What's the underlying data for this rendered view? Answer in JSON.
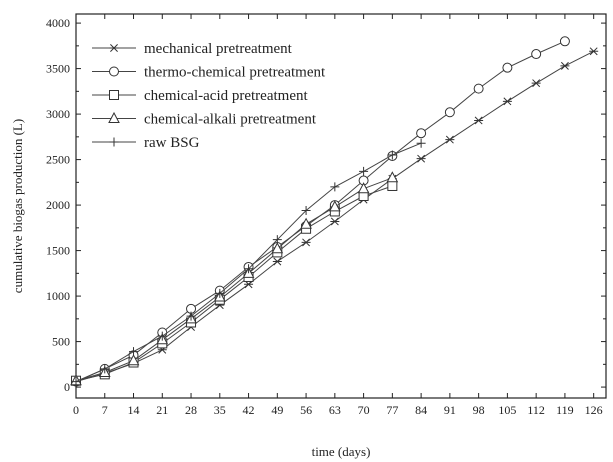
{
  "chart_data": {
    "type": "line",
    "xlabel": "time (days)",
    "ylabel": "cumulative biogas production (L)",
    "xlim": [
      0,
      129
    ],
    "ylim": [
      -120,
      4100
    ],
    "xticks": [
      0,
      7,
      14,
      21,
      28,
      35,
      42,
      49,
      56,
      63,
      70,
      77,
      84,
      91,
      98,
      105,
      112,
      119,
      126
    ],
    "yticks": [
      0,
      500,
      1000,
      1500,
      2000,
      2500,
      3000,
      3500,
      4000
    ],
    "legend_position": "top-left",
    "series": [
      {
        "name": "mechanical pretreatment",
        "marker": "asterisk",
        "x": [
          0,
          7,
          14,
          21,
          28,
          35,
          42,
          49,
          56,
          63,
          70,
          77,
          84,
          91,
          98,
          105,
          112,
          119,
          126
        ],
        "y": [
          60,
          150,
          260,
          410,
          660,
          900,
          1130,
          1380,
          1590,
          1820,
          2060,
          2290,
          2510,
          2720,
          2930,
          3140,
          3340,
          3530,
          3690
        ]
      },
      {
        "name": "thermo-chemical pretreatment",
        "marker": "circle",
        "x": [
          0,
          7,
          14,
          21,
          28,
          35,
          42,
          49,
          56,
          63,
          70,
          77,
          84,
          91,
          98,
          105,
          112,
          119
        ],
        "y": [
          60,
          200,
          350,
          600,
          860,
          1060,
          1320,
          1540,
          1770,
          2000,
          2270,
          2540,
          2790,
          3020,
          3280,
          3510,
          3660,
          3800
        ]
      },
      {
        "name": "chemical-acid pretreatment",
        "marker": "square",
        "x": [
          0,
          7,
          14,
          21,
          28,
          35,
          42,
          49,
          56,
          63,
          70,
          77
        ],
        "y": [
          70,
          140,
          270,
          480,
          710,
          960,
          1210,
          1480,
          1740,
          1930,
          2100,
          2210
        ]
      },
      {
        "name": "chemical-alkali pretreatment",
        "marker": "triangle",
        "x": [
          0,
          7,
          14,
          21,
          28,
          35,
          42,
          49,
          56,
          63,
          70,
          77
        ],
        "y": [
          70,
          160,
          290,
          520,
          750,
          990,
          1250,
          1520,
          1790,
          1980,
          2180,
          2300
        ]
      },
      {
        "name": "raw BSG",
        "marker": "plus",
        "x": [
          0,
          7,
          14,
          21,
          28,
          35,
          42,
          49,
          56,
          63,
          70,
          77,
          84
        ],
        "y": [
          60,
          200,
          390,
          560,
          780,
          1030,
          1300,
          1620,
          1940,
          2200,
          2370,
          2550,
          2680
        ]
      }
    ]
  }
}
